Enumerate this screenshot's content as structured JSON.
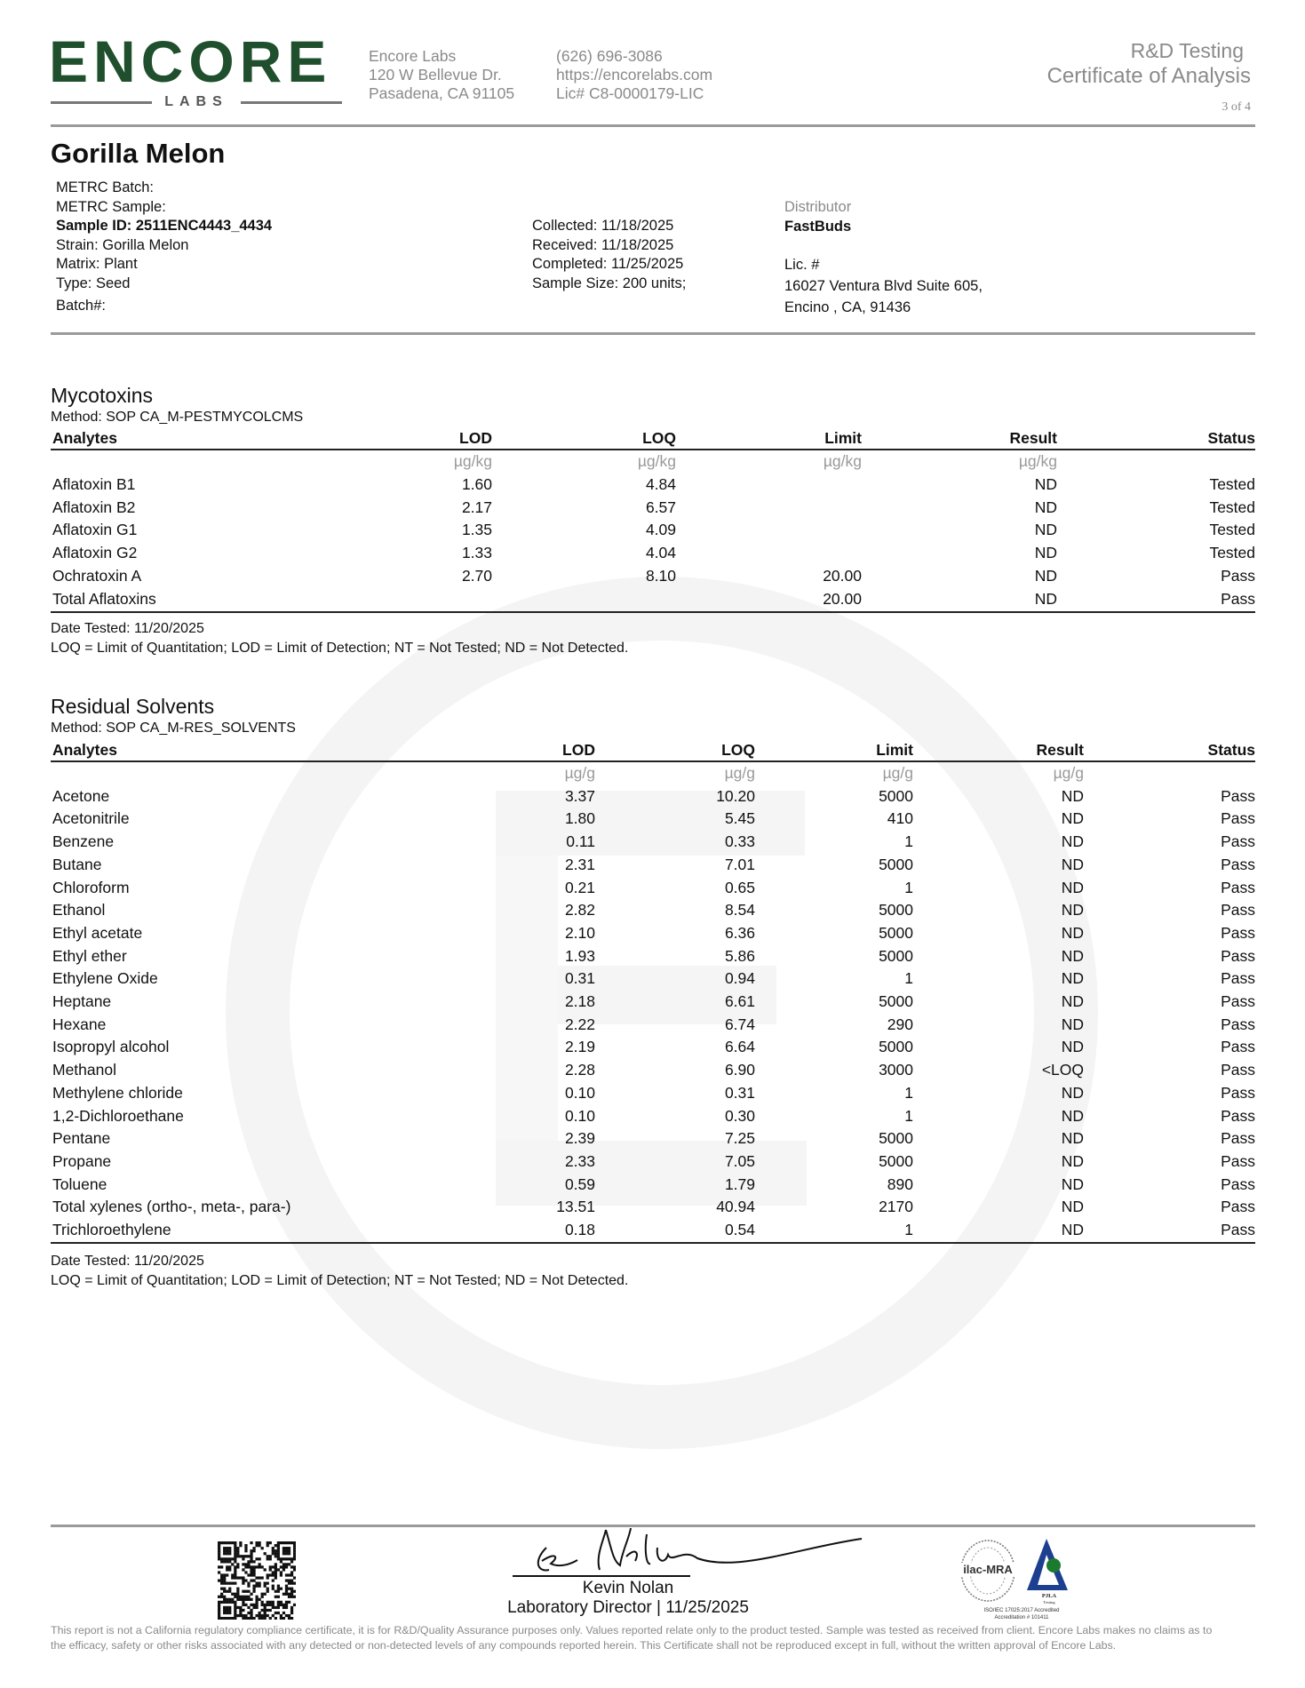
{
  "header": {
    "logo": {
      "word": "ENCORE",
      "sub": "LABS",
      "color": "#1f4f2d"
    },
    "lab_name": "Encore Labs",
    "address1": "120 W Bellevue Dr.",
    "address2": "Pasadena, CA 91105",
    "phone": "(626) 696-3086",
    "website": "https://encorelabs.com",
    "license": "Lic# C8-0000179-LIC",
    "report_type": "R&D Testing",
    "report_title": "Certificate of Analysis",
    "page": "3 of 4"
  },
  "sample": {
    "name": "Gorilla Melon",
    "metrc_batch": "METRC Batch:",
    "metrc_sample": "METRC Sample:",
    "sample_id": "Sample ID: 2511ENC4443_4434",
    "strain": "Strain: Gorilla Melon",
    "matrix": "Matrix: Plant",
    "type": "Type: Seed",
    "batch": "Batch#:",
    "collected": "Collected: 11/18/2025",
    "received": "Received: 11/18/2025",
    "completed": "Completed: 11/25/2025",
    "sample_size": "Sample Size: 200 units;",
    "distributor_label": "Distributor",
    "distributor": "FastBuds",
    "lic": "Lic. #",
    "dist_address1": "16027 Ventura Blvd Suite 605,",
    "dist_address2": "Encino , CA, 91436"
  },
  "mycotoxins": {
    "title": "Mycotoxins",
    "method": "Method: SOP CA_M-PESTMYCOLCMS",
    "columns": [
      "Analytes",
      "LOD",
      "LOQ",
      "Limit",
      "Result",
      "Status"
    ],
    "units": [
      "",
      "µg/kg",
      "µg/kg",
      "µg/kg",
      "µg/kg",
      ""
    ],
    "rows": [
      [
        "Aflatoxin B1",
        "1.60",
        "4.84",
        "",
        "ND",
        "Tested"
      ],
      [
        "Aflatoxin B2",
        "2.17",
        "6.57",
        "",
        "ND",
        "Tested"
      ],
      [
        "Aflatoxin G1",
        "1.35",
        "4.09",
        "",
        "ND",
        "Tested"
      ],
      [
        "Aflatoxin G2",
        "1.33",
        "4.04",
        "",
        "ND",
        "Tested"
      ],
      [
        "Ochratoxin A",
        "2.70",
        "8.10",
        "20.00",
        "ND",
        "Pass"
      ],
      [
        "Total Aflatoxins",
        "",
        "",
        "20.00",
        "ND",
        "Pass"
      ]
    ],
    "date_tested": "Date Tested: 11/20/2025",
    "legend": "LOQ = Limit of Quantitation; LOD = Limit of Detection; NT = Not Tested; ND = Not Detected."
  },
  "solvents": {
    "title": "Residual Solvents",
    "method": "Method: SOP CA_M-RES_SOLVENTS",
    "columns": [
      "Analytes",
      "LOD",
      "LOQ",
      "Limit",
      "Result",
      "Status"
    ],
    "units": [
      "",
      "µg/g",
      "µg/g",
      "µg/g",
      "µg/g",
      ""
    ],
    "rows": [
      [
        "Acetone",
        "3.37",
        "10.20",
        "5000",
        "ND",
        "Pass"
      ],
      [
        "Acetonitrile",
        "1.80",
        "5.45",
        "410",
        "ND",
        "Pass"
      ],
      [
        "Benzene",
        "0.11",
        "0.33",
        "1",
        "ND",
        "Pass"
      ],
      [
        "Butane",
        "2.31",
        "7.01",
        "5000",
        "ND",
        "Pass"
      ],
      [
        "Chloroform",
        "0.21",
        "0.65",
        "1",
        "ND",
        "Pass"
      ],
      [
        "Ethanol",
        "2.82",
        "8.54",
        "5000",
        "ND",
        "Pass"
      ],
      [
        "Ethyl acetate",
        "2.10",
        "6.36",
        "5000",
        "ND",
        "Pass"
      ],
      [
        "Ethyl ether",
        "1.93",
        "5.86",
        "5000",
        "ND",
        "Pass"
      ],
      [
        "Ethylene Oxide",
        "0.31",
        "0.94",
        "1",
        "ND",
        "Pass"
      ],
      [
        "Heptane",
        "2.18",
        "6.61",
        "5000",
        "ND",
        "Pass"
      ],
      [
        "Hexane",
        "2.22",
        "6.74",
        "290",
        "ND",
        "Pass"
      ],
      [
        "Isopropyl alcohol",
        "2.19",
        "6.64",
        "5000",
        "ND",
        "Pass"
      ],
      [
        "Methanol",
        "2.28",
        "6.90",
        "3000",
        "<LOQ",
        "Pass"
      ],
      [
        "Methylene chloride",
        "0.10",
        "0.31",
        "1",
        "ND",
        "Pass"
      ],
      [
        "1,2-Dichloroethane",
        "0.10",
        "0.30",
        "1",
        "ND",
        "Pass"
      ],
      [
        "Pentane",
        "2.39",
        "7.25",
        "5000",
        "ND",
        "Pass"
      ],
      [
        "Propane",
        "2.33",
        "7.05",
        "5000",
        "ND",
        "Pass"
      ],
      [
        "Toluene",
        "0.59",
        "1.79",
        "890",
        "ND",
        "Pass"
      ],
      [
        "Total xylenes (ortho-, meta-, para-)",
        "13.51",
        "40.94",
        "2170",
        "ND",
        "Pass"
      ],
      [
        "Trichloroethylene",
        "0.18",
        "0.54",
        "1",
        "ND",
        "Pass"
      ]
    ],
    "date_tested": "Date Tested: 11/20/2025",
    "legend": "LOQ = Limit of Quantitation; LOD = Limit of Detection; NT = Not Tested; ND = Not Detected."
  },
  "footer": {
    "signer": "Kevin Nolan",
    "signer_title": "Laboratory Director | 11/25/2025",
    "accreditation_logo_text": [
      "ilac-MRA",
      "PJLA",
      "Testing",
      "ISO/IEC 17025:2017 Accredited",
      "Accreditation # 101411"
    ],
    "disclaimer": "This report is not a California regulatory compliance certificate, it is for R&D/Quality Assurance purposes only. Values reported relate only to the product tested. Sample was tested as received from client. Encore Labs makes no claims as to the efficacy, safety or other risks associated with any detected or non-detected levels of any compounds reported herein. This Certificate shall not be reproduced except in full, without the written approval of Encore Labs."
  }
}
